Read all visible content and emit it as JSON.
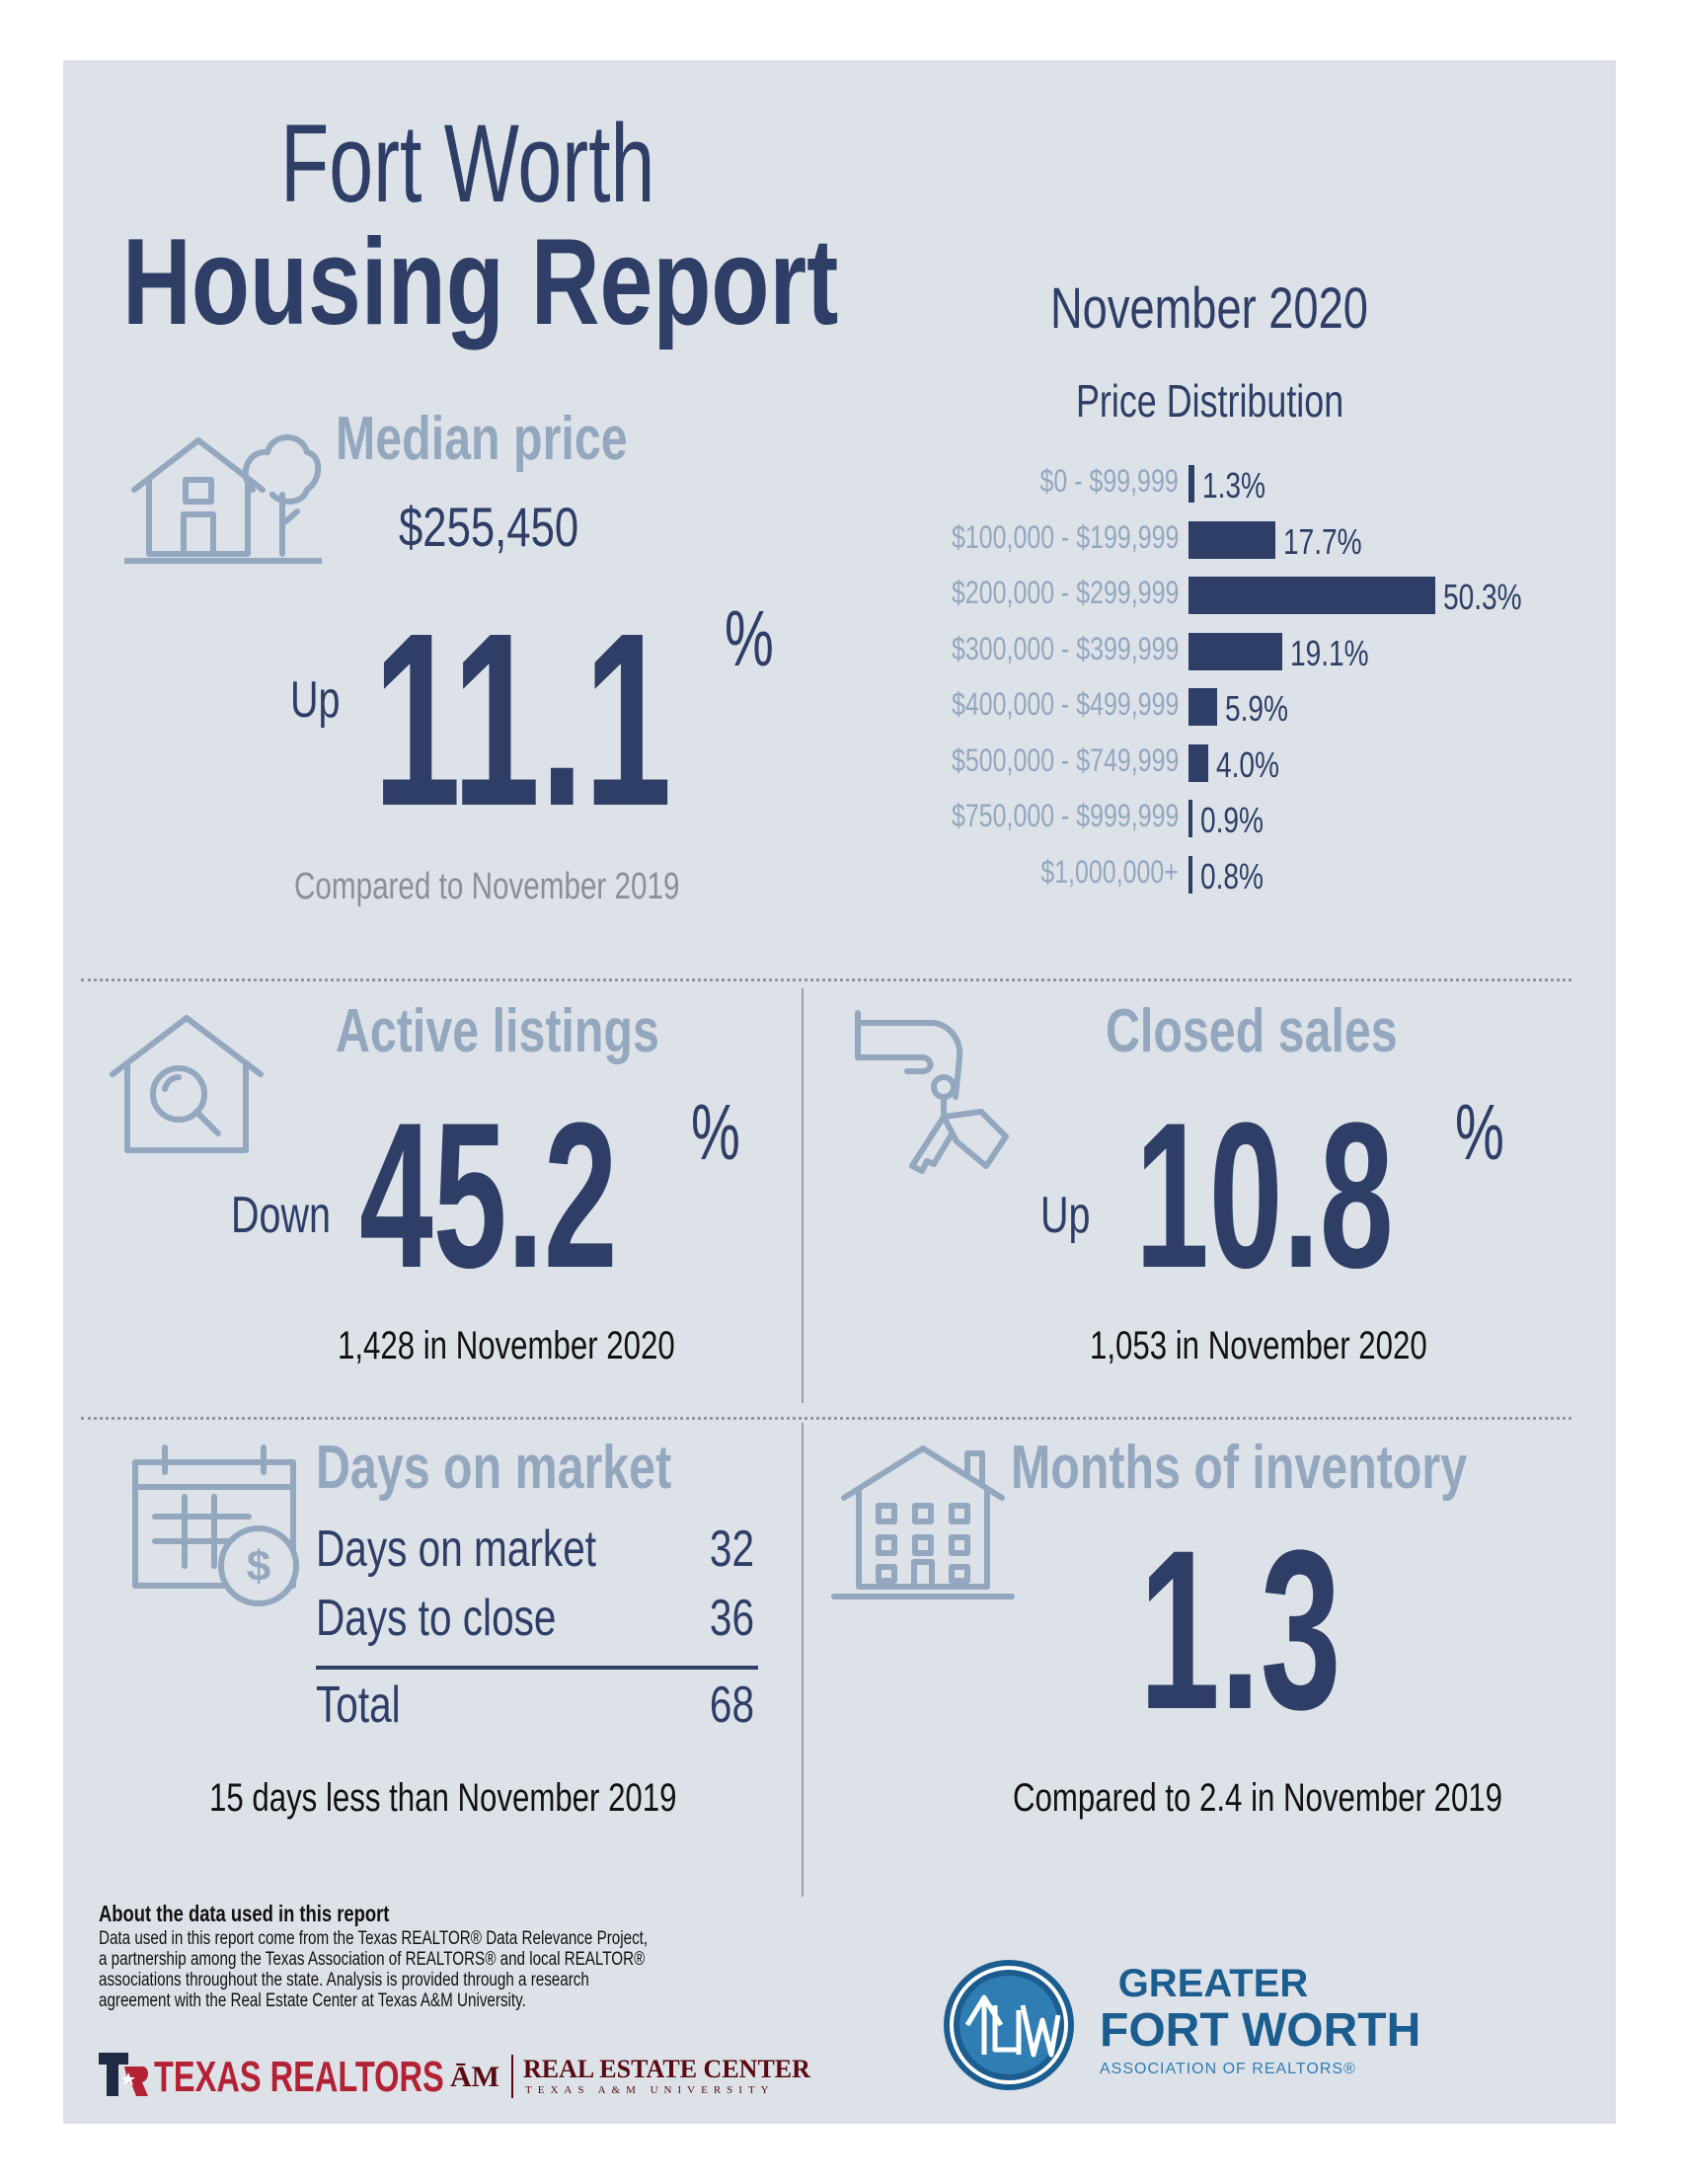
{
  "header": {
    "title_line1": "Fort Worth",
    "title_line2": "Housing Report",
    "month": "November 2020"
  },
  "median_price": {
    "title": "Median price",
    "price": "$255,450",
    "direction": "Up",
    "change": "11.1",
    "percent_sign": "%",
    "comparison": "Compared to November 2019",
    "icon": "house-tree-icon"
  },
  "price_distribution": {
    "title": "Price Distribution",
    "rows": [
      {
        "label": "$0 - $99,999",
        "value": 1.3,
        "display": "1.3%"
      },
      {
        "label": "$100,000 - $199,999",
        "value": 17.7,
        "display": "17.7%"
      },
      {
        "label": "$200,000 - $299,999",
        "value": 50.3,
        "display": "50.3%"
      },
      {
        "label": "$300,000 - $399,999",
        "value": 19.1,
        "display": "19.1%"
      },
      {
        "label": "$400,000 - $499,999",
        "value": 5.9,
        "display": "5.9%"
      },
      {
        "label": "$500,000 - $749,999",
        "value": 4.0,
        "display": "4.0%"
      },
      {
        "label": "$750,000 - $999,999",
        "value": 0.9,
        "display": "0.9%"
      },
      {
        "label": "$1,000,000+",
        "value": 0.8,
        "display": "0.8%"
      }
    ]
  },
  "active_listings": {
    "title": "Active listings",
    "direction": "Down",
    "change": "45.2",
    "percent_sign": "%",
    "caption": "1,428 in November 2020",
    "icon": "house-magnifier-icon"
  },
  "closed_sales": {
    "title": "Closed sales",
    "direction": "Up",
    "change": "10.8",
    "percent_sign": "%",
    "caption": "1,053 in November 2020",
    "icon": "hand-keys-icon"
  },
  "days_on_market": {
    "title": "Days on market",
    "rows": [
      {
        "label": "Days on market",
        "value": "32"
      },
      {
        "label": "Days to close",
        "value": "36"
      }
    ],
    "total_label": "Total",
    "total_value": "68",
    "caption": "15 days less than November 2019",
    "icon": "calendar-dollar-icon"
  },
  "months_inventory": {
    "title": "Months of inventory",
    "value": "1.3",
    "caption": "Compared to 2.4 in November 2019",
    "icon": "apartment-building-icon"
  },
  "footer": {
    "about_heading": "About the data used in this report",
    "about_text": "Data used in this report come from the Texas REALTOR® Data Relevance Project, a partnership among the Texas Association of REALTORS® and local REALTOR® associations throughout the state. Analysis is provided through a research agreement with the Real Estate Center at Texas A&M University.",
    "logo_texas_realtors": "TEXAS REALTORS",
    "logo_rec_main": "REAL ESTATE CENTER",
    "logo_rec_sub": "TEXAS A&M UNIVERSITY",
    "logo_gfw_line1": "GREATER",
    "logo_gfw_line2": "FORT WORTH",
    "logo_gfw_line3": "ASSOCIATION OF REALTORS®"
  },
  "colors": {
    "panel": "#dde1e8",
    "navy": "#2e3e66",
    "light_blue": "#93a7bf",
    "red": "#b22234",
    "gfw_blue": "#1b5d8f"
  }
}
